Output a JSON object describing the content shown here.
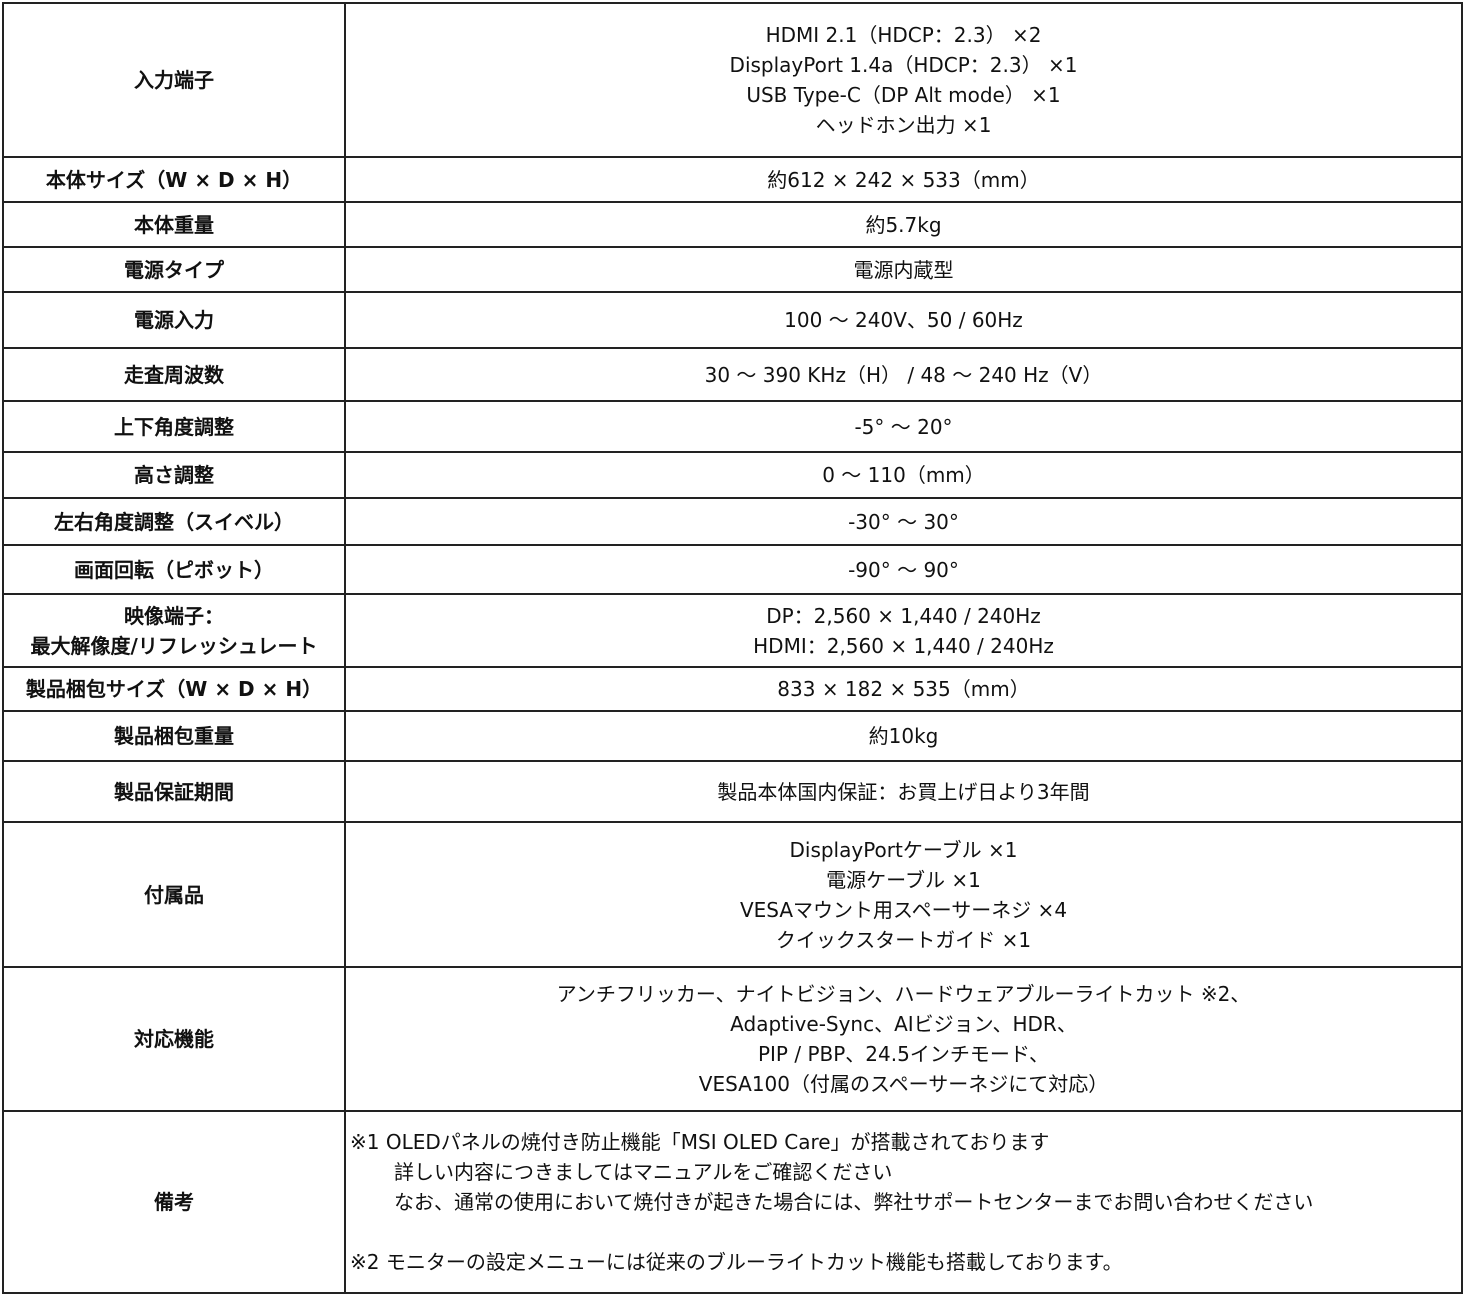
{
  "rows": [
    {
      "label": [
        "入力端子"
      ],
      "value": [
        "HDMI 2.1（HDCP：2.3） ×2",
        "DisplayPort 1.4a（HDCP：2.3） ×1",
        "USB Type-C（DP Alt mode） ×1",
        "ヘッドホン出力 ×1"
      ]
    },
    {
      "label": [
        "本体サイズ（W × D × H）"
      ],
      "value": [
        "約612 × 242 × 533（mm）"
      ]
    },
    {
      "label": [
        "本体重量"
      ],
      "value": [
        "約5.7kg"
      ]
    },
    {
      "label": [
        "電源タイプ"
      ],
      "value": [
        "電源内蔵型"
      ]
    },
    {
      "label": [
        "電源入力"
      ],
      "value": [
        "100 ～ 240V、50 / 60Hz"
      ]
    },
    {
      "label": [
        "走査周波数"
      ],
      "value": [
        "30 ～ 390 KHz（H） / 48 ～ 240 Hz（V）"
      ]
    },
    {
      "label": [
        "上下角度調整"
      ],
      "value": [
        "-5° ～ 20°"
      ]
    },
    {
      "label": [
        "高さ調整"
      ],
      "value": [
        "0 ～ 110（mm）"
      ]
    },
    {
      "label": [
        "左右角度調整（スイベル）"
      ],
      "value": [
        "-30° ～ 30°"
      ]
    },
    {
      "label": [
        "画面回転（ピボット）"
      ],
      "value": [
        "-90° ～ 90°"
      ]
    },
    {
      "label": [
        "映像端子：",
        "最大解像度/リフレッシュレート"
      ],
      "value": [
        "DP：2,560 × 1,440 / 240Hz",
        "HDMI：2,560 × 1,440 / 240Hz"
      ]
    },
    {
      "label": [
        "製品梱包サイズ（W × D × H）"
      ],
      "value": [
        "833 × 182 × 535（mm）"
      ]
    },
    {
      "label": [
        "製品梱包重量"
      ],
      "value": [
        "約10kg"
      ]
    },
    {
      "label": [
        "製品保証期間"
      ],
      "value": [
        "製品本体国内保証：お買上げ日より3年間"
      ]
    },
    {
      "label": [
        "付属品"
      ],
      "value": [
        "DisplayPortケーブル ×1",
        "電源ケーブル ×1",
        "VESAマウント用スペーサーネジ ×4",
        "クイックスタートガイド ×1"
      ]
    },
    {
      "label": [
        "対応機能"
      ],
      "value": [
        "アンチフリッカー、ナイトビジョン、ハードウェアブルーライトカット ※2、",
        "Adaptive-Sync、AIビジョン、HDR、",
        "PIP / PBP、24.5インチモード、",
        "VESA100（付属のスペーサーネジにて対応）"
      ]
    }
  ],
  "notes": {
    "label": "備考",
    "note1": "※1 OLEDパネルの焼付き防止機能「MSI OLED Care」が搭載されております",
    "note1_sub1": "詳しい内容につきましてはマニュアルをご確認ください",
    "note1_sub2": "なお、通常の使用において焼付きが起きた場合には、弊社サポートセンターまでお問い合わせください",
    "note2": "※2 モニターの設定メニューには従来のブルーライトカット機能も搭載しております。"
  }
}
